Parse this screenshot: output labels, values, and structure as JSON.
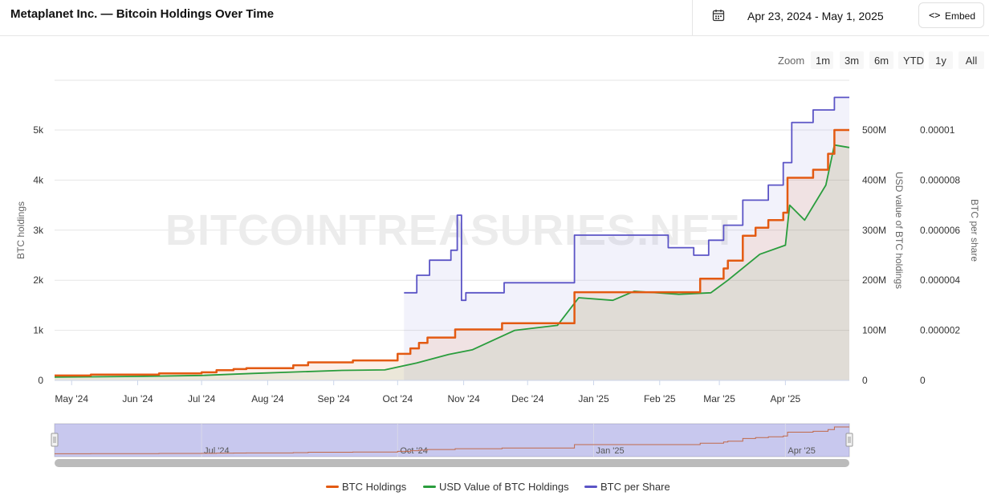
{
  "header": {
    "title": "Metaplanet Inc. — Bitcoin Holdings Over Time",
    "date_range": "Apr 23, 2024 - May 1, 2025",
    "embed_label": "Embed",
    "embed_icon": "<>"
  },
  "zoom": {
    "label": "Zoom",
    "buttons": [
      "1m",
      "3m",
      "6m",
      "YTD",
      "1y",
      "All"
    ]
  },
  "watermark": "BITCOINTREASURIES.NET",
  "navigator": {
    "labels": [
      "Jul '24",
      "Oct '24",
      "Jan '25",
      "Apr '25"
    ]
  },
  "chart_data": {
    "type": "line",
    "title": "Metaplanet Inc. — Bitcoin Holdings Over Time",
    "x_range": [
      "2024-04-23",
      "2025-05-01"
    ],
    "x_ticks": [
      "May '24",
      "Jun '24",
      "Jul '24",
      "Aug '24",
      "Sep '24",
      "Oct '24",
      "Nov '24",
      "Dec '24",
      "Jan '25",
      "Feb '25",
      "Mar '25",
      "Apr '25"
    ],
    "y_axes": [
      {
        "id": "btc",
        "label": "BTC holdings",
        "ticks": [
          "0",
          "1k",
          "2k",
          "3k",
          "4k",
          "5k"
        ],
        "range": [
          0,
          5000
        ],
        "side": "left"
      },
      {
        "id": "usd",
        "label": "USD value of BTC holdings",
        "ticks": [
          "0",
          "100M",
          "200M",
          "300M",
          "400M",
          "500M"
        ],
        "range": [
          0,
          500000000
        ],
        "side": "right"
      },
      {
        "id": "share",
        "label": "BTC per share",
        "ticks": [
          "0",
          "0.000002",
          "0.000004",
          "0.000006",
          "0.000008",
          "0.00001"
        ],
        "range": [
          0,
          1e-05
        ],
        "side": "right"
      }
    ],
    "grid": true,
    "legend_position": "bottom",
    "series": [
      {
        "name": "BTC Holdings",
        "axis": "btc",
        "color": "#e35a12",
        "step": true,
        "points": [
          [
            "2024-04-23",
            97.9
          ],
          [
            "2024-05-10",
            117.7
          ],
          [
            "2024-06-11",
            141.1
          ],
          [
            "2024-07-01",
            161.3
          ],
          [
            "2024-07-08",
            203.7
          ],
          [
            "2024-07-16",
            225.6
          ],
          [
            "2024-07-22",
            245.99
          ],
          [
            "2024-08-13",
            303.1
          ],
          [
            "2024-08-20",
            360.4
          ],
          [
            "2024-09-10",
            398.8
          ],
          [
            "2024-10-01",
            530.7
          ],
          [
            "2024-10-07",
            639.5
          ],
          [
            "2024-10-11",
            748.5
          ],
          [
            "2024-10-15",
            855.5
          ],
          [
            "2024-10-28",
            1018.2
          ],
          [
            "2024-11-19",
            1142.3
          ],
          [
            "2024-12-23",
            1762.0
          ],
          [
            "2025-02-17",
            1761.9
          ],
          [
            "2025-02-20",
            2031.0
          ],
          [
            "2025-03-03",
            2235.0
          ],
          [
            "2025-03-05",
            2391.0
          ],
          [
            "2025-03-12",
            2888.0
          ],
          [
            "2025-03-18",
            3050.0
          ],
          [
            "2025-03-24",
            3200.0
          ],
          [
            "2025-03-31",
            3350.0
          ],
          [
            "2025-04-02",
            4046.0
          ],
          [
            "2025-04-14",
            4206.0
          ],
          [
            "2025-04-21",
            4525.0
          ],
          [
            "2025-04-24",
            5000.0
          ],
          [
            "2025-05-01",
            5000.0
          ]
        ]
      },
      {
        "name": "USD Value of BTC Holdings",
        "axis": "usd",
        "color": "#2a9d3d",
        "step": false,
        "points": [
          [
            "2024-04-23",
            6500000
          ],
          [
            "2024-05-10",
            7200000
          ],
          [
            "2024-06-01",
            8000000
          ],
          [
            "2024-07-01",
            10000000
          ],
          [
            "2024-07-25",
            14000000
          ],
          [
            "2024-08-15",
            17000000
          ],
          [
            "2024-09-05",
            20000000
          ],
          [
            "2024-09-25",
            21000000
          ],
          [
            "2024-10-10",
            35000000
          ],
          [
            "2024-10-25",
            52000000
          ],
          [
            "2024-11-05",
            61000000
          ],
          [
            "2024-11-25",
            100000000
          ],
          [
            "2024-12-15",
            110000000
          ],
          [
            "2024-12-25",
            165000000
          ],
          [
            "2025-01-10",
            160000000
          ],
          [
            "2025-01-20",
            178000000
          ],
          [
            "2025-02-10",
            172000000
          ],
          [
            "2025-02-25",
            175000000
          ],
          [
            "2025-03-05",
            200000000
          ],
          [
            "2025-03-20",
            252000000
          ],
          [
            "2025-04-01",
            270000000
          ],
          [
            "2025-04-03",
            350000000
          ],
          [
            "2025-04-10",
            320000000
          ],
          [
            "2025-04-20",
            390000000
          ],
          [
            "2025-04-24",
            470000000
          ],
          [
            "2025-05-01",
            465000000
          ]
        ]
      },
      {
        "name": "BTC per Share",
        "axis": "share",
        "color": "#5b54c6",
        "step": true,
        "points": [
          [
            "2024-10-04",
            3.5e-06
          ],
          [
            "2024-10-10",
            4.2e-06
          ],
          [
            "2024-10-16",
            4.8e-06
          ],
          [
            "2024-10-26",
            5.2e-06
          ],
          [
            "2024-10-29",
            6.6e-06
          ],
          [
            "2024-10-31",
            3.2e-06
          ],
          [
            "2024-11-02",
            3.5e-06
          ],
          [
            "2024-11-20",
            3.9e-06
          ],
          [
            "2024-12-23",
            5.8e-06
          ],
          [
            "2025-01-24",
            5.8e-06
          ],
          [
            "2025-02-05",
            5.3e-06
          ],
          [
            "2025-02-17",
            5e-06
          ],
          [
            "2025-02-24",
            5.6e-06
          ],
          [
            "2025-03-03",
            6.2e-06
          ],
          [
            "2025-03-12",
            7.2e-06
          ],
          [
            "2025-03-24",
            7.8e-06
          ],
          [
            "2025-03-31",
            8.7e-06
          ],
          [
            "2025-04-04",
            1.03e-05
          ],
          [
            "2025-04-14",
            1.08e-05
          ],
          [
            "2025-04-24",
            1.13e-05
          ],
          [
            "2025-05-01",
            1.13e-05
          ]
        ]
      }
    ]
  }
}
